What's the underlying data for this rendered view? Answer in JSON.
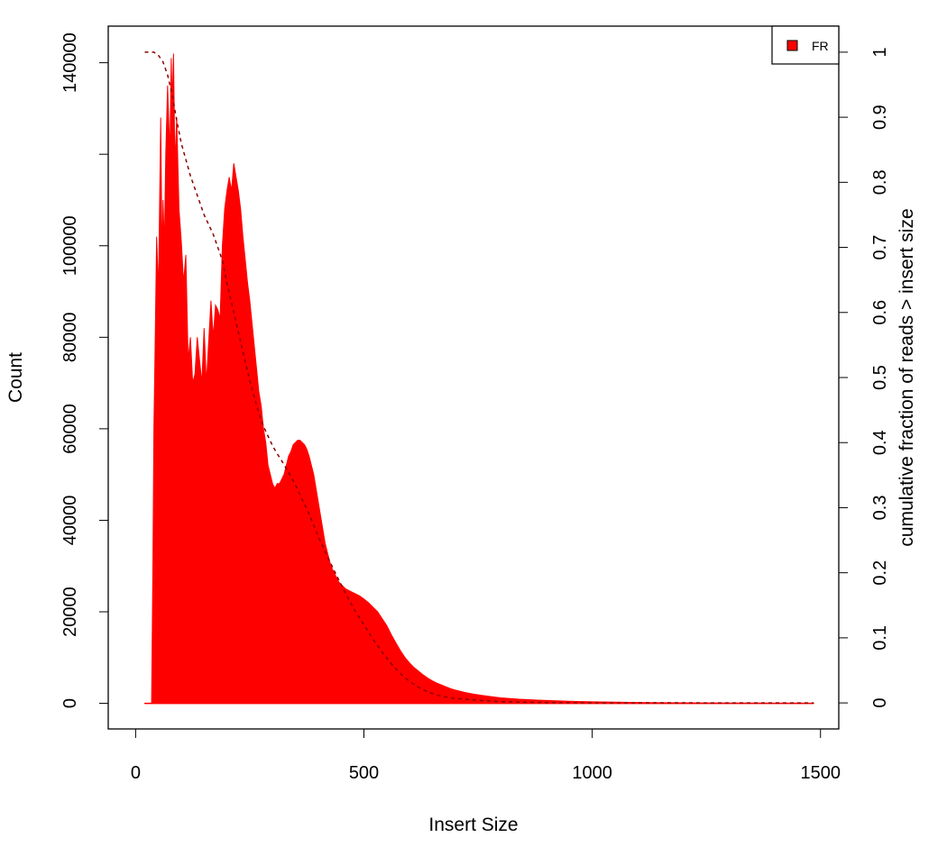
{
  "chart_data": {
    "type": "area",
    "xlabel": "Insert Size",
    "ylabel": "Count",
    "ylabel_right": "cumulative fraction of reads > insert size",
    "xlim": [
      -60,
      1540
    ],
    "ylim": [
      -5600,
      148000
    ],
    "ylim_right": [
      -0.04,
      1.04
    ],
    "x_ticks": [
      0,
      500,
      1000,
      1500
    ],
    "y_ticks": [
      0,
      20000,
      40000,
      60000,
      80000,
      100000,
      120000,
      140000
    ],
    "y_tick_labels": [
      "0",
      "20000",
      "40000",
      "60000",
      "80000",
      "100000",
      "",
      "140000"
    ],
    "y_right_ticks": [
      0,
      0.1,
      0.2,
      0.3,
      0.4,
      0.5,
      0.6,
      0.7,
      0.8,
      0.9,
      1
    ],
    "y_right_tick_labels": [
      "0",
      "0.1",
      "0.2",
      "0.3",
      "0.4",
      "0.5",
      "0.6",
      "0.7",
      "0.8",
      "0.9",
      "1"
    ],
    "legend": {
      "position": "top-right",
      "entries": [
        {
          "label": "FR",
          "color": "#ff0000"
        }
      ]
    },
    "series": [
      {
        "name": "FR",
        "kind": "histogram-envelope",
        "color": "#ff0000",
        "x": [
          20,
          30,
          35,
          38,
          40,
          43,
          46,
          50,
          55,
          58,
          60,
          63,
          66,
          70,
          75,
          78,
          80,
          83,
          86,
          90,
          95,
          100,
          105,
          110,
          115,
          120,
          125,
          130,
          135,
          140,
          145,
          150,
          155,
          160,
          165,
          170,
          175,
          180,
          185,
          190,
          195,
          200,
          205,
          210,
          215,
          220,
          225,
          230,
          235,
          240,
          245,
          250,
          255,
          260,
          265,
          270,
          275,
          280,
          285,
          290,
          295,
          300,
          305,
          310,
          315,
          320,
          325,
          330,
          335,
          340,
          345,
          350,
          355,
          360,
          365,
          370,
          375,
          380,
          385,
          390,
          395,
          400,
          405,
          410,
          415,
          420,
          425,
          430,
          435,
          440,
          445,
          450,
          455,
          460,
          470,
          480,
          490,
          500,
          510,
          520,
          530,
          540,
          550,
          560,
          570,
          580,
          590,
          600,
          610,
          620,
          630,
          640,
          650,
          660,
          670,
          680,
          690,
          700,
          720,
          740,
          760,
          780,
          800,
          820,
          840,
          860,
          880,
          900,
          950,
          1000,
          1050,
          1100,
          1150,
          1200,
          1250,
          1300,
          1350,
          1400,
          1450,
          1485
        ],
        "y": [
          0,
          0,
          0,
          32000,
          60000,
          80000,
          102000,
          90000,
          128000,
          96000,
          110000,
          100000,
          120000,
          135000,
          120000,
          141000,
          131000,
          142000,
          118000,
          128000,
          108000,
          101000,
          92000,
          98000,
          75000,
          80000,
          70000,
          72000,
          80000,
          75000,
          70000,
          82000,
          70000,
          79000,
          88000,
          80000,
          87000,
          86000,
          84000,
          100000,
          108000,
          112000,
          115000,
          112000,
          118000,
          115000,
          112000,
          108000,
          102000,
          97000,
          92000,
          88000,
          83000,
          78000,
          73000,
          68000,
          65000,
          60000,
          57000,
          52000,
          50000,
          48000,
          47000,
          48000,
          48000,
          49000,
          50000,
          52000,
          54000,
          55000,
          56500,
          57000,
          57500,
          57500,
          57000,
          56500,
          55500,
          54000,
          52000,
          50000,
          47000,
          44000,
          41000,
          38000,
          35000,
          33000,
          31000,
          29500,
          28500,
          27500,
          26500,
          26000,
          25500,
          25000,
          24500,
          24000,
          23500,
          22800,
          22000,
          21000,
          20000,
          18500,
          17000,
          15000,
          13200,
          11500,
          10000,
          8800,
          7800,
          7000,
          6200,
          5500,
          4900,
          4400,
          4000,
          3600,
          3200,
          2900,
          2400,
          2000,
          1700,
          1450,
          1200,
          1050,
          900,
          800,
          700,
          620,
          450,
          330,
          250,
          190,
          140,
          110,
          85,
          65,
          50,
          40,
          30,
          20
        ]
      },
      {
        "name": "cumulative",
        "kind": "dashed-line",
        "color": "#8b0000",
        "axis": "right",
        "x": [
          20,
          30,
          40,
          50,
          60,
          70,
          80,
          90,
          100,
          110,
          120,
          130,
          140,
          150,
          160,
          170,
          180,
          190,
          200,
          210,
          220,
          230,
          240,
          250,
          260,
          270,
          280,
          290,
          300,
          310,
          320,
          330,
          340,
          350,
          360,
          370,
          380,
          390,
          400,
          420,
          440,
          460,
          480,
          500,
          520,
          540,
          560,
          580,
          600,
          620,
          640,
          660,
          680,
          700,
          750,
          800,
          850,
          900,
          1000,
          1100,
          1200,
          1300,
          1400,
          1485
        ],
        "y": [
          1,
          1,
          1,
          0.995,
          0.985,
          0.965,
          0.935,
          0.895,
          0.86,
          0.835,
          0.81,
          0.79,
          0.77,
          0.75,
          0.735,
          0.72,
          0.7,
          0.68,
          0.645,
          0.615,
          0.585,
          0.555,
          0.525,
          0.495,
          0.47,
          0.445,
          0.425,
          0.41,
          0.395,
          0.383,
          0.372,
          0.36,
          0.348,
          0.335,
          0.32,
          0.305,
          0.29,
          0.273,
          0.256,
          0.225,
          0.196,
          0.168,
          0.142,
          0.12,
          0.098,
          0.078,
          0.06,
          0.045,
          0.033,
          0.024,
          0.017,
          0.012,
          0.009,
          0.007,
          0.004,
          0.002,
          0.001,
          0.0005,
          0.0002,
          0.0001,
          0.0001,
          0,
          0,
          0
        ]
      }
    ]
  }
}
